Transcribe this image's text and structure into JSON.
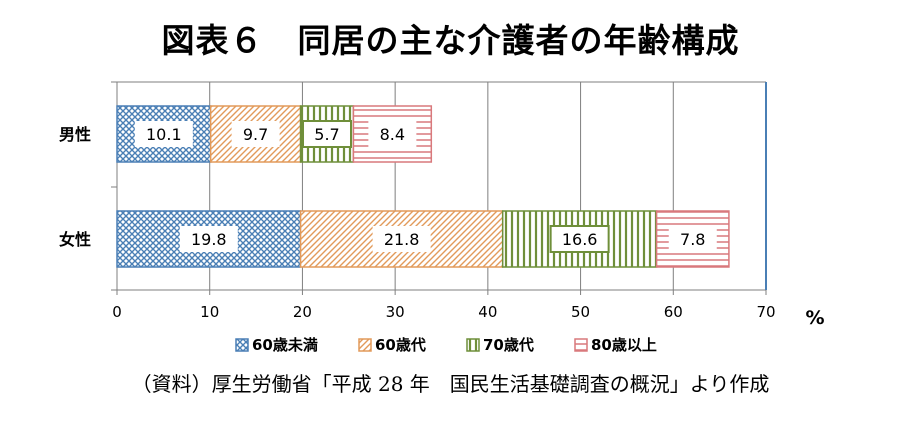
{
  "chart_data": {
    "type": "bar",
    "orientation": "horizontal",
    "stacked": true,
    "title": "図表６　同居の主な介護者の年齢構成",
    "source": "（資料）厚生労働省「平成 28 年　国民生活基礎調査の概況」より作成",
    "unit_label": "%",
    "categories": [
      "男性",
      "女性"
    ],
    "xlim": [
      0,
      70
    ],
    "xticks": [
      0,
      10,
      20,
      30,
      40,
      50,
      60,
      70
    ],
    "grid": true,
    "legend_position": "bottom",
    "series": [
      {
        "name": "60歳未満",
        "values": [
          10.1,
          19.8
        ],
        "color": "#4a7fb5",
        "pattern": "crosshatch"
      },
      {
        "name": "60歳代",
        "values": [
          9.7,
          21.8
        ],
        "color": "#e29a5a",
        "pattern": "diagonal"
      },
      {
        "name": "70歳代",
        "values": [
          5.7,
          16.6
        ],
        "color": "#6f8f3a",
        "pattern": "vertical"
      },
      {
        "name": "80歳以上",
        "values": [
          8.4,
          7.8
        ],
        "color": "#d9797c",
        "pattern": "horizontal"
      }
    ]
  }
}
